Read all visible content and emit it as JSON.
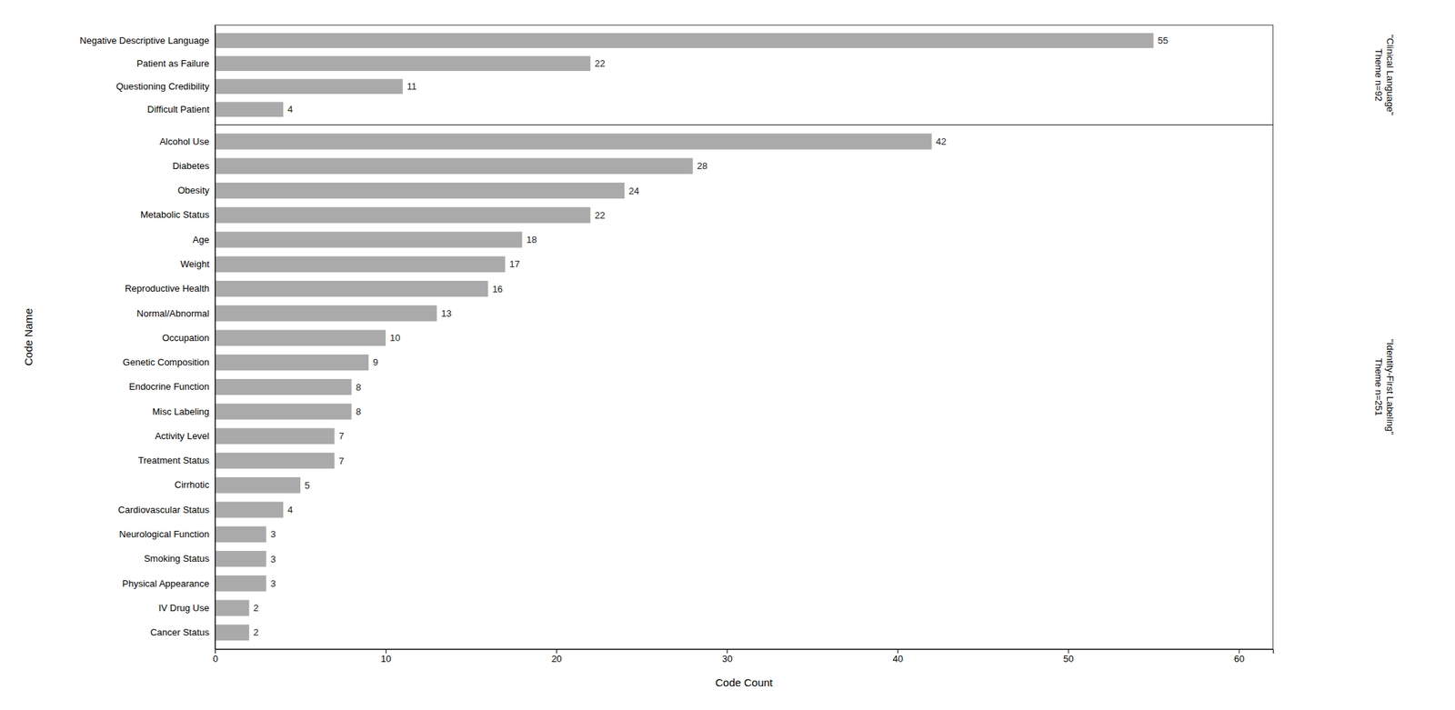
{
  "chart_data": [
    {
      "type": "bar",
      "orientation": "horizontal",
      "title": "\"Clinical Language\"\nTheme n=92",
      "ylabel": "Code Name",
      "categories": [
        "Difficult Patient",
        "Questioning Credibility",
        "Patient as Failure",
        "Negative Descriptive Language"
      ],
      "values": [
        4,
        11,
        22,
        55
      ],
      "color": "#aaaaaa",
      "xlim": [
        0,
        62
      ],
      "data_labels": true,
      "tick_labels": "y",
      "grid": false
    },
    {
      "type": "bar",
      "orientation": "horizontal",
      "title": "\"Identity-First Labeling\"\nTheme n=251",
      "xlabel": "Code Count",
      "categories": [
        "Cancer Status",
        "IV Drug Use",
        "Physical Appearance",
        "Smoking Status",
        "Neurological Function",
        "Cardiovascular Status",
        "Cirrhotic",
        "Treatment Status",
        "Activity Level",
        "Misc Labeling",
        "Endocrine Function",
        "Genetic Composition",
        "Occupation",
        "Normal/Abnormal",
        "Reproductive Health",
        "Weight",
        "Age",
        "Metabolic Status",
        "Obesity",
        "Diabetes",
        "Alcohol Use"
      ],
      "values": [
        2,
        2,
        3,
        3,
        3,
        4,
        5,
        7,
        7,
        8,
        8,
        9,
        10,
        13,
        16,
        17,
        18,
        22,
        24,
        28,
        42
      ],
      "color": "#aaaaaa",
      "xlim": [
        0,
        62
      ],
      "xticks": [
        0,
        10,
        20,
        30,
        40,
        50,
        60
      ],
      "data_labels": true,
      "grid": false
    }
  ]
}
